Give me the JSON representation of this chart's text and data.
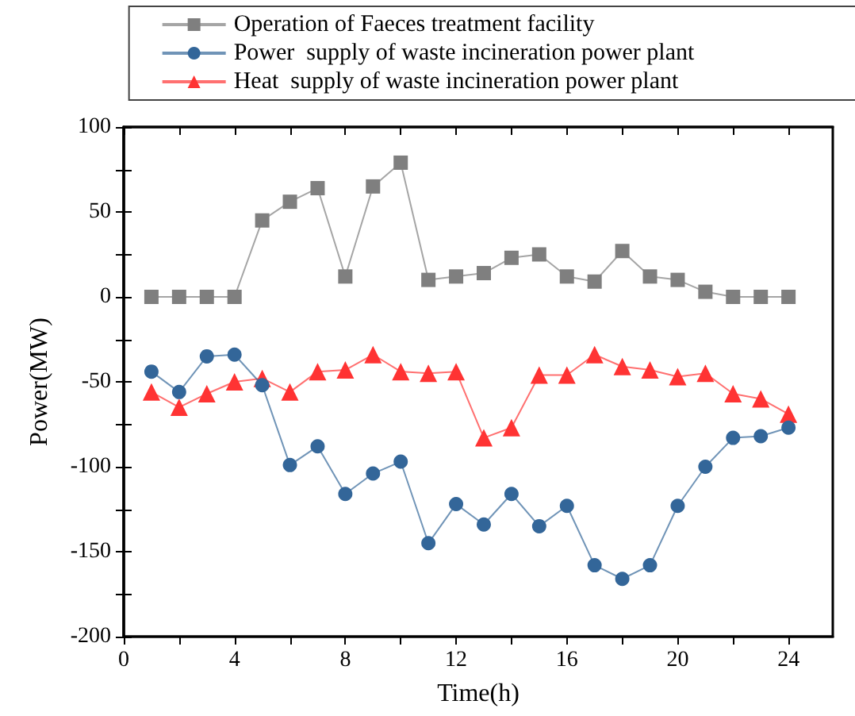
{
  "chart_data": {
    "type": "line",
    "xlabel": "Time(h)",
    "ylabel": "Power(MW)",
    "x": [
      1,
      2,
      3,
      4,
      5,
      6,
      7,
      8,
      9,
      10,
      11,
      12,
      13,
      14,
      15,
      16,
      17,
      18,
      19,
      20,
      21,
      22,
      23,
      24
    ],
    "series": [
      {
        "name": "Operation of Faeces treatment facility",
        "color": "#7f7f7f",
        "marker": "square",
        "values": [
          0,
          0,
          0,
          0,
          45,
          56,
          64,
          12,
          65,
          79,
          10,
          12,
          14,
          23,
          25,
          12,
          9,
          27,
          12,
          10,
          3,
          0,
          0,
          0
        ]
      },
      {
        "name": "Power  supply of waste incineration power plant",
        "color": "#336699",
        "marker": "circle",
        "values": [
          -44,
          -56,
          -35,
          -34,
          -52,
          -99,
          -88,
          -116,
          -104,
          -97,
          -145,
          -122,
          -134,
          -116,
          -135,
          -123,
          -158,
          -166,
          -158,
          -123,
          -100,
          -83,
          -82,
          -77
        ]
      },
      {
        "name": "Heat  supply of waste incineration power plant",
        "color": "#ff3333",
        "marker": "triangle",
        "values": [
          -56,
          -65,
          -57,
          -50,
          -48,
          -56,
          -44,
          -43,
          -34,
          -44,
          -45,
          -44,
          -83,
          -77,
          -46,
          -46,
          -34,
          -41,
          -43,
          -47,
          -45,
          -57,
          -60,
          -69
        ]
      }
    ],
    "xlim": [
      0,
      25.6
    ],
    "xticks": [
      0,
      {
        "value": 2,
        "label": null
      },
      4,
      {
        "value": 6,
        "label": null
      },
      8,
      {
        "value": 10,
        "label": null
      },
      12,
      {
        "value": 14,
        "label": null
      },
      16,
      {
        "value": 18,
        "label": null
      },
      20,
      {
        "value": 22,
        "label": null
      },
      24
    ],
    "ylim": [
      -200,
      100
    ],
    "yticks": [
      -200,
      {
        "value": -175,
        "label": null
      },
      -150,
      {
        "value": -125,
        "label": null
      },
      -100,
      {
        "value": -75,
        "label": null
      },
      -50,
      {
        "value": -25,
        "label": null
      },
      0,
      {
        "value": 25,
        "label": null
      },
      50,
      {
        "value": 75,
        "label": null
      },
      100
    ],
    "grid": false,
    "legend": "top",
    "line_style": "solid"
  }
}
